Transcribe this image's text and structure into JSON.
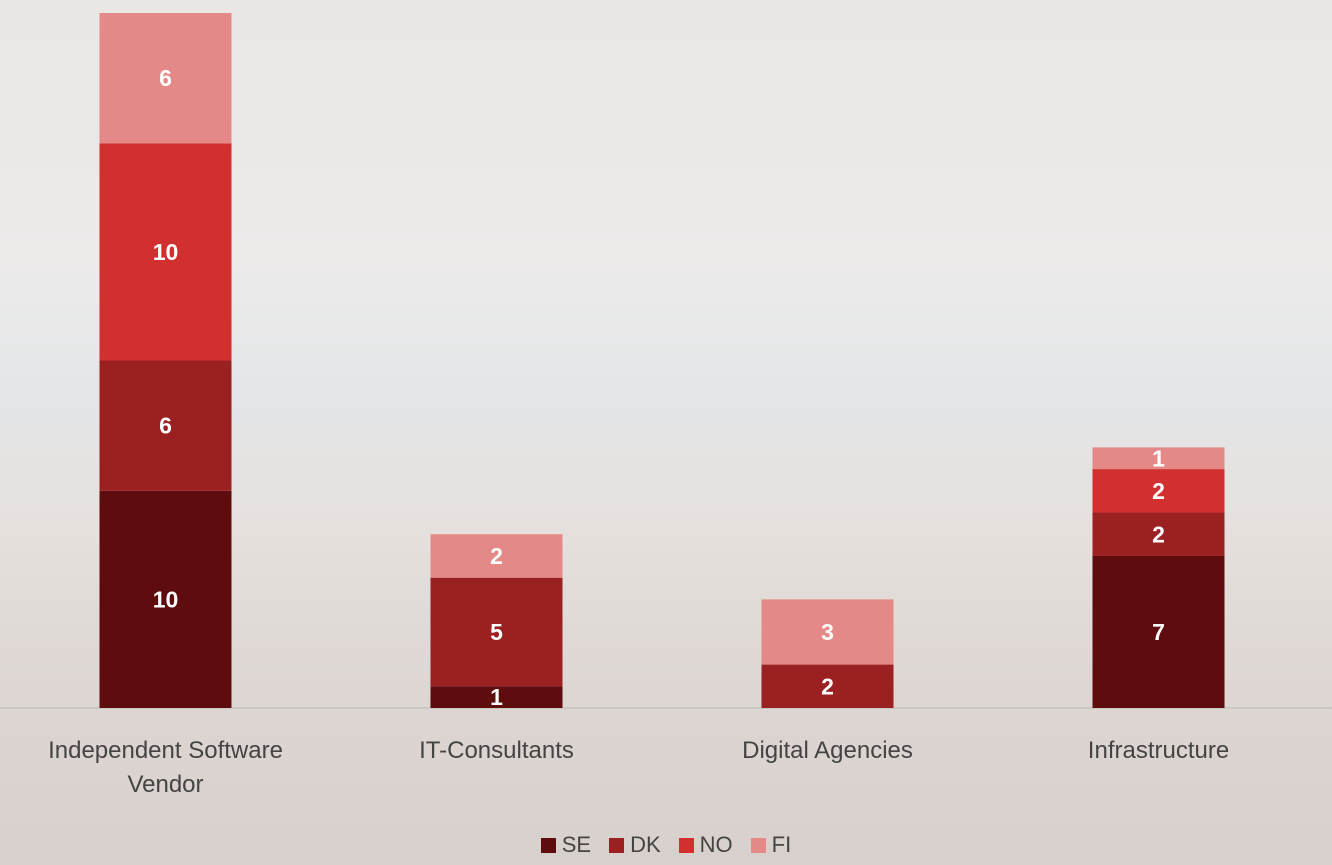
{
  "chart_data": {
    "type": "stacked-bar",
    "categories": [
      "Independent Software Vendor",
      "IT-Consultants",
      "Digital Agencies",
      "Infrastructure"
    ],
    "series": [
      {
        "name": "SE",
        "color": "#5e0c0e",
        "values": [
          10,
          1,
          null,
          7
        ]
      },
      {
        "name": "DK",
        "color": "#9b2022",
        "values": [
          6,
          5,
          2,
          2
        ]
      },
      {
        "name": "NO",
        "color": "#d22f2f",
        "values": [
          10,
          null,
          null,
          2
        ]
      },
      {
        "name": "FI",
        "color": "#e48987",
        "values": [
          6,
          2,
          3,
          1
        ]
      }
    ],
    "ylim": [
      0,
      32
    ],
    "legend": "bottom"
  }
}
